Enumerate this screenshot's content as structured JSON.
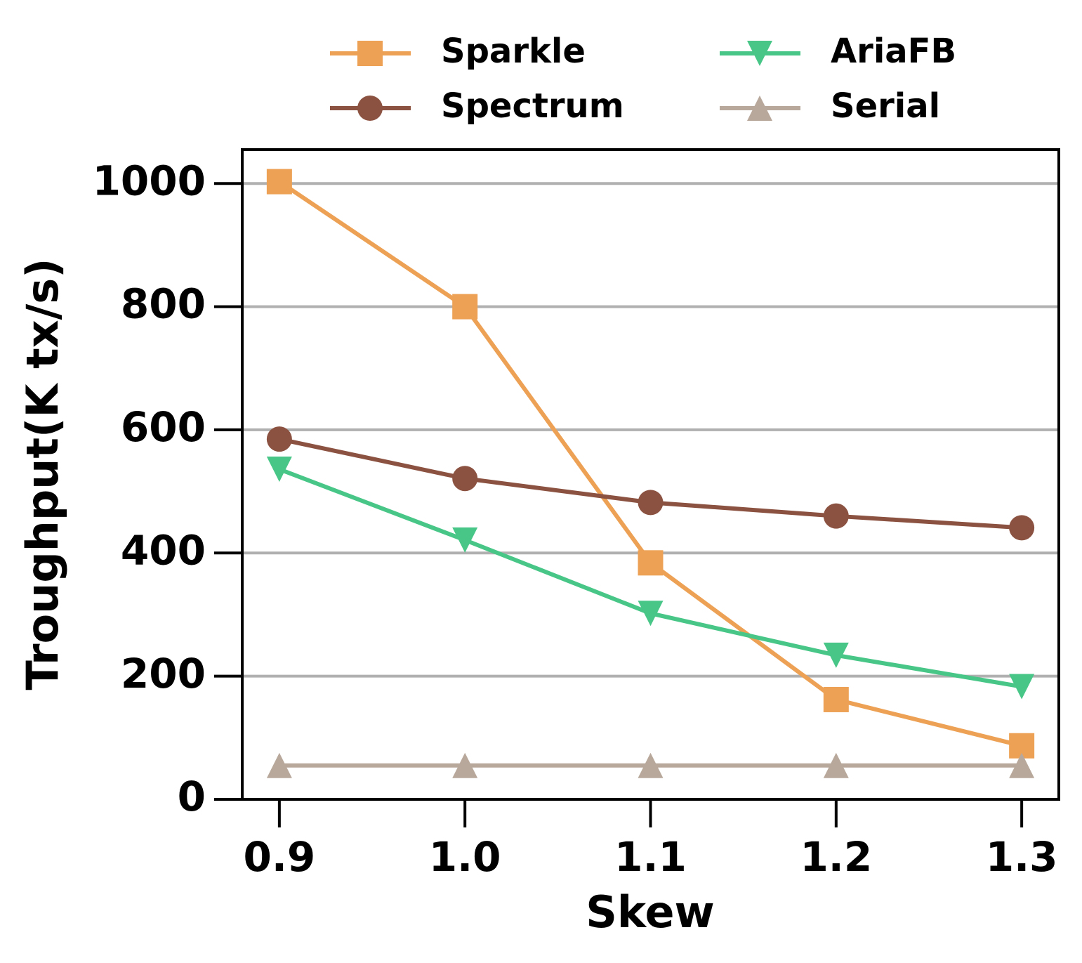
{
  "chart_data": {
    "type": "line",
    "xlabel": "Skew",
    "ylabel": "Troughput(K tx/s)",
    "x": [
      0.9,
      1,
      1.1,
      1.2,
      1.3
    ],
    "series": [
      {
        "name": "Sparkle",
        "color": "#eda154",
        "marker": "square",
        "values": [
          1003,
          800,
          384,
          162,
          87
        ]
      },
      {
        "name": "Spectrum",
        "color": "#8c5241",
        "marker": "circle",
        "values": [
          585,
          521,
          482,
          460,
          441
        ]
      },
      {
        "name": "AriaFB",
        "color": "#47c687",
        "marker": "triangle-down",
        "values": [
          536,
          421,
          302,
          234,
          183
        ]
      },
      {
        "name": "Serial",
        "color": "#b8a89b",
        "marker": "triangle-up",
        "values": [
          55,
          55,
          55,
          55,
          55
        ]
      }
    ],
    "xlim": [
      0.88,
      1.32
    ],
    "xticks": [
      0.9,
      {
        "value": 1,
        "label": "1.0"
      },
      1.1,
      1.2,
      1.3
    ],
    "ylim": [
      0,
      1055
    ],
    "yticks": [
      0,
      200,
      400,
      600,
      800,
      1000
    ],
    "grid": true,
    "legend": "top"
  }
}
